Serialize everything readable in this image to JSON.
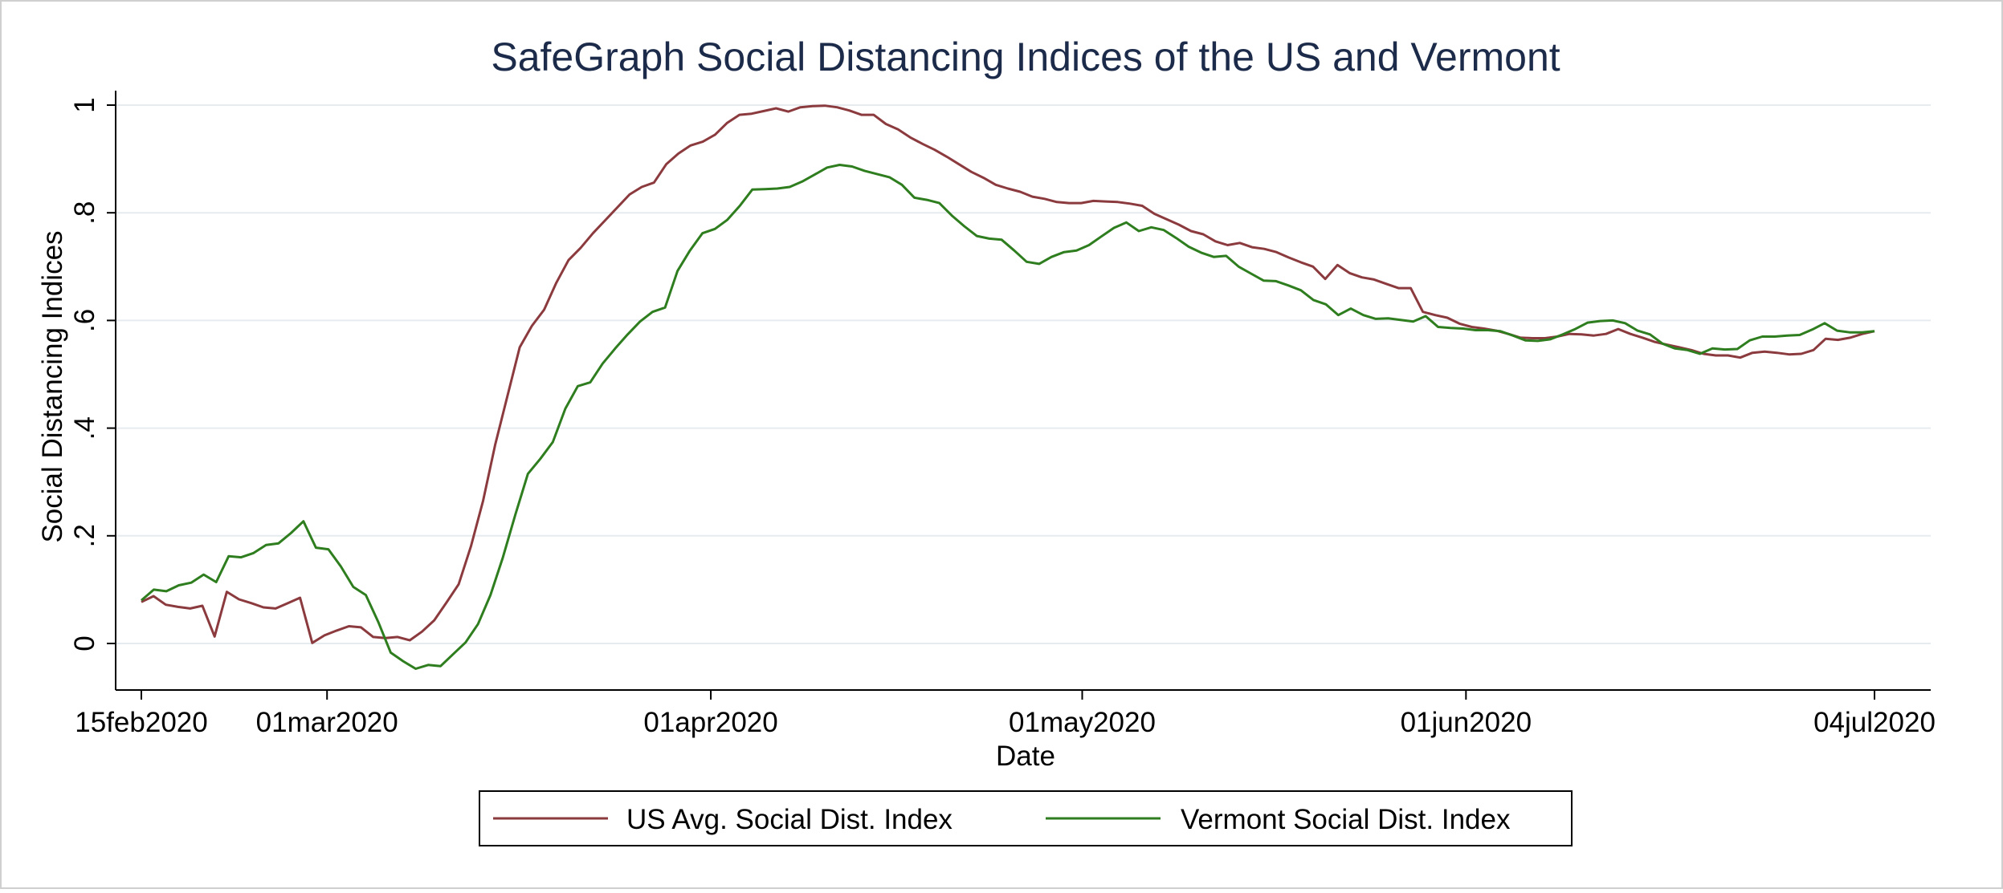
{
  "chart_data": {
    "type": "line",
    "title": "SafeGraph Social Distancing Indices of the US and Vermont",
    "xlabel": "Date",
    "ylabel": "Social Distancing Indices",
    "x_start": "15feb2020",
    "x_end": "04jul2020",
    "xlim": [
      "15feb2020",
      "04jul2020"
    ],
    "ylim": [
      -0.08,
      1.04
    ],
    "xticks": [
      {
        "date": "15feb2020",
        "label": "15feb2020"
      },
      {
        "date": "01mar2020",
        "label": "01mar2020"
      },
      {
        "date": "01apr2020",
        "label": "01apr2020"
      },
      {
        "date": "01may2020",
        "label": "01may2020"
      },
      {
        "date": "01jun2020",
        "label": "01jun2020"
      },
      {
        "date": "04jul2020",
        "label": "04jul2020"
      }
    ],
    "yticks": [
      {
        "value": 0,
        "label": "0"
      },
      {
        "value": 0.2,
        "label": ".2"
      },
      {
        "value": 0.4,
        "label": ".4"
      },
      {
        "value": 0.6,
        "label": ".6"
      },
      {
        "value": 0.8,
        "label": ".8"
      },
      {
        "value": 1,
        "label": "1"
      }
    ],
    "grid": "horizontal",
    "legend_position": "bottom",
    "series": [
      {
        "name": "US Avg. Social Dist. Index",
        "color": "#8b3a3e",
        "values": [
          0.077,
          0.088,
          0.072,
          0.068,
          0.065,
          0.07,
          0.013,
          0.096,
          0.082,
          0.075,
          0.067,
          0.065,
          0.075,
          0.085,
          0.001,
          0.015,
          0.024,
          0.032,
          0.03,
          0.012,
          0.01,
          0.012,
          0.006,
          0.022,
          0.043,
          0.076,
          0.11,
          0.18,
          0.265,
          0.37,
          0.46,
          0.55,
          0.59,
          0.62,
          0.67,
          0.712,
          0.735,
          0.762,
          0.786,
          0.81,
          0.834,
          0.848,
          0.856,
          0.89,
          0.91,
          0.925,
          0.932,
          0.945,
          0.967,
          0.982,
          0.984,
          0.989,
          0.994,
          0.988,
          0.996,
          0.998,
          0.999,
          0.996,
          0.99,
          0.982,
          0.982,
          0.965,
          0.955,
          0.94,
          0.928,
          0.917,
          0.904,
          0.89,
          0.876,
          0.865,
          0.852,
          0.845,
          0.839,
          0.83,
          0.826,
          0.82,
          0.818,
          0.818,
          0.822,
          0.821,
          0.82,
          0.817,
          0.813,
          0.798,
          0.788,
          0.778,
          0.766,
          0.76,
          0.747,
          0.74,
          0.744,
          0.736,
          0.733,
          0.727,
          0.717,
          0.708,
          0.7,
          0.677,
          0.703,
          0.688,
          0.68,
          0.676,
          0.668,
          0.66,
          0.66,
          0.616,
          0.61,
          0.605,
          0.594,
          0.588,
          0.585,
          0.581,
          0.575,
          0.568,
          0.567,
          0.567,
          0.57,
          0.575,
          0.574,
          0.572,
          0.575,
          0.584,
          0.575,
          0.568,
          0.56,
          0.555,
          0.55,
          0.545,
          0.538,
          0.535,
          0.535,
          0.531,
          0.54,
          0.542,
          0.54,
          0.537,
          0.538,
          0.545,
          0.566,
          0.564,
          0.568,
          0.575,
          0.58
        ]
      },
      {
        "name": "Vermont Social Dist. Index",
        "color": "#2e7d1e",
        "values": [
          0.08,
          0.1,
          0.097,
          0.108,
          0.113,
          0.128,
          0.114,
          0.162,
          0.16,
          0.168,
          0.183,
          0.186,
          0.205,
          0.227,
          0.178,
          0.175,
          0.143,
          0.105,
          0.09,
          0.04,
          -0.017,
          -0.033,
          -0.047,
          -0.04,
          -0.042,
          -0.02,
          0.002,
          0.036,
          0.09,
          0.16,
          0.24,
          0.315,
          0.343,
          0.374,
          0.436,
          0.478,
          0.485,
          0.52,
          0.548,
          0.574,
          0.598,
          0.616,
          0.624,
          0.692,
          0.73,
          0.762,
          0.77,
          0.787,
          0.813,
          0.843,
          0.844,
          0.845,
          0.848,
          0.858,
          0.871,
          0.884,
          0.889,
          0.886,
          0.878,
          0.872,
          0.866,
          0.852,
          0.828,
          0.824,
          0.818,
          0.795,
          0.775,
          0.757,
          0.752,
          0.75,
          0.73,
          0.709,
          0.705,
          0.718,
          0.727,
          0.73,
          0.74,
          0.756,
          0.772,
          0.782,
          0.766,
          0.773,
          0.768,
          0.753,
          0.737,
          0.726,
          0.718,
          0.72,
          0.7,
          0.687,
          0.674,
          0.673,
          0.665,
          0.656,
          0.638,
          0.63,
          0.61,
          0.622,
          0.61,
          0.603,
          0.604,
          0.601,
          0.598,
          0.608,
          0.588,
          0.586,
          0.585,
          0.582,
          0.582,
          0.58,
          0.572,
          0.563,
          0.562,
          0.565,
          0.574,
          0.584,
          0.596,
          0.599,
          0.6,
          0.595,
          0.581,
          0.574,
          0.557,
          0.548,
          0.545,
          0.538,
          0.548,
          0.546,
          0.547,
          0.563,
          0.57,
          0.57,
          0.572,
          0.573,
          0.583,
          0.595,
          0.581,
          0.578,
          0.578,
          0.58
        ]
      }
    ]
  }
}
